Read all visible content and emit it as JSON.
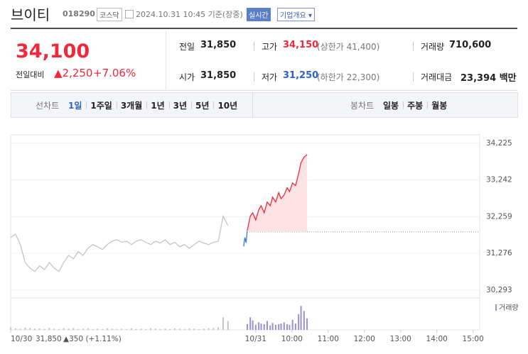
{
  "header": {
    "name": "브이티",
    "code": "018290",
    "market": "코스닥",
    "datetime": "2024.10.31 10:45 기준(장중)",
    "realtime": "실시간",
    "company_info": "기업개요 ▾"
  },
  "price": {
    "current": "34,100",
    "change_label": "전일대비",
    "change": "▲2,250",
    "change_rate": "+7.06%"
  },
  "stats": [
    {
      "label": "전일",
      "value": "31,850"
    },
    {
      "label": "고가",
      "value": "34,150",
      "extra": "(상한가 41,400)"
    },
    {
      "label": "거래량",
      "value": "710,600"
    },
    {
      "label": "시가",
      "value": "31,850"
    },
    {
      "label": "저가",
      "value": "31,250",
      "extra": "(하한가 22,300)"
    },
    {
      "label": "거래대금",
      "value": "23,394 백만"
    }
  ],
  "tabs": {
    "line_label": "선차트",
    "line": [
      "1일",
      "1주일",
      "3개월",
      "1년",
      "3년",
      "5년",
      "10년"
    ],
    "selected": 0,
    "candle_label": "봉차트",
    "candle": [
      "일봉",
      "주봉",
      "월봉"
    ]
  },
  "chart_data": {
    "type": "line",
    "xlim": [
      -406,
      371
    ],
    "ylim": [
      30080,
      34450
    ],
    "xticks": [
      {
        "value": -406,
        "label": "10/30"
      },
      {
        "value": 0,
        "label": "10/31"
      },
      {
        "value": 60,
        "label": "10:00"
      },
      {
        "value": 120,
        "label": "11:00"
      },
      {
        "value": 180,
        "label": "12:00"
      },
      {
        "value": 240,
        "label": "13:00"
      },
      {
        "value": 300,
        "label": "14:00"
      },
      {
        "value": 360,
        "label": "15:00"
      }
    ],
    "yticks": [
      {
        "value": 34225,
        "label": "34,225"
      },
      {
        "value": 33242,
        "label": "33,242"
      },
      {
        "value": 32259,
        "label": "32,259"
      },
      {
        "value": 31276,
        "label": "31,276"
      },
      {
        "value": 30293,
        "label": "30,293"
      }
    ],
    "baseline": 31850,
    "grid": true,
    "series": [
      {
        "color": "#c4c4c4",
        "x": [
          -406,
          -398,
          -390,
          -382,
          -374,
          -366,
          -358,
          -350,
          -342,
          -334,
          -326,
          -318,
          -310,
          -302,
          -294,
          -286,
          -278,
          -270,
          -262,
          -254,
          -246,
          -238,
          -230,
          -222,
          -214,
          -206,
          -198,
          -190,
          -182,
          -174,
          -166,
          -158,
          -150,
          -142,
          -134,
          -126,
          -118,
          -110,
          -102,
          -94,
          -86,
          -78,
          -70,
          -62,
          -54,
          -46
        ],
        "values": [
          31700,
          31790,
          31510,
          31030,
          30880,
          30790,
          30940,
          30840,
          31030,
          30880,
          30790,
          31030,
          31220,
          31130,
          31320,
          31220,
          31410,
          31510,
          31450,
          31380,
          31510,
          31600,
          31640,
          31570,
          31600,
          31510,
          31600,
          31640,
          31570,
          31510,
          31600,
          31550,
          31640,
          31510,
          31570,
          31450,
          31510,
          31410,
          31510,
          31600,
          31550,
          31510,
          31570,
          31600,
          32270,
          32020
        ]
      },
      {
        "color": "#3a78d8",
        "x": [
          -20,
          -18,
          -16,
          -14
        ],
        "values": [
          31460,
          31700,
          31560,
          31890
        ]
      },
      {
        "color": "#f0283c",
        "fill": "#fde2e4",
        "x": [
          -14,
          -9,
          -5,
          0,
          5,
          9,
          14,
          19,
          24,
          28,
          33,
          38,
          42,
          47,
          52,
          56,
          61,
          66,
          71,
          75,
          80,
          85
        ],
        "values": [
          31890,
          32270,
          32360,
          32170,
          32440,
          32550,
          32360,
          32650,
          32550,
          32780,
          32650,
          32900,
          32740,
          32840,
          33030,
          32930,
          33160,
          33090,
          33410,
          33700,
          33850,
          33920
        ]
      }
    ],
    "volume_label": "거래량",
    "vlim": [
      0,
      45000
    ],
    "volume": [
      {
        "color": "#c4c4c4",
        "x": [
          -406,
          -398,
          -390,
          -382,
          -374,
          -366,
          -358,
          -350,
          -342,
          -334,
          -326,
          -318,
          -310,
          -302,
          -294,
          -286,
          -278,
          -270,
          -262,
          -254,
          -246,
          -238,
          -230,
          -222,
          -214,
          -206,
          -198,
          -190,
          -182,
          -174,
          -166,
          -158,
          -150,
          -142,
          -134,
          -126,
          -118,
          -110,
          -102,
          -94,
          -86,
          -78,
          -70,
          -62,
          -54,
          -46
        ],
        "values": [
          4000,
          2500,
          2000,
          3500,
          3000,
          2000,
          2500,
          1500,
          3000,
          2000,
          1500,
          2500,
          2000,
          3000,
          1500,
          2000,
          2500,
          1500,
          2000,
          1500,
          2500,
          2000,
          1500,
          2000,
          1500,
          2500,
          1500,
          2000,
          1500,
          2500,
          2000,
          1500,
          2000,
          1500,
          2500,
          2000,
          1500,
          2500,
          2000,
          1500,
          2000,
          2500,
          3000,
          4000,
          20000,
          14000
        ]
      },
      {
        "color": "#9a8fd1",
        "x": [
          -14,
          -9,
          -5,
          0,
          5,
          9,
          14,
          19,
          24,
          28,
          33,
          38,
          42,
          47,
          52,
          56,
          61,
          66,
          71,
          75,
          80,
          85
        ],
        "values": [
          9000,
          20000,
          15000,
          8000,
          12000,
          10000,
          9000,
          14000,
          7000,
          11000,
          8000,
          9000,
          10000,
          12000,
          9000,
          8000,
          16000,
          10000,
          25000,
          38000,
          30000,
          18000
        ]
      }
    ],
    "prev_summary": [
      "31,850",
      "▲350 (+1.11%)"
    ]
  }
}
